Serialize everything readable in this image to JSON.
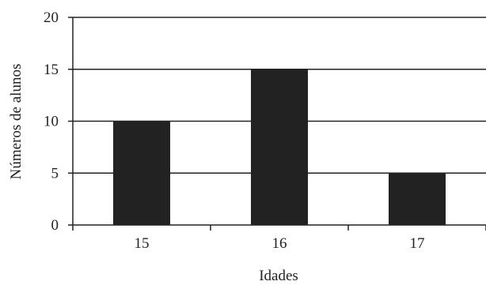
{
  "chart_data": {
    "type": "bar",
    "categories": [
      "15",
      "16",
      "17"
    ],
    "values": [
      10,
      15,
      5
    ],
    "xlabel": "Idades",
    "ylabel": "Números de alunos",
    "ylim": [
      0,
      20
    ],
    "yticks": [
      0,
      5,
      10,
      15,
      20
    ],
    "grid": true,
    "colors": {
      "bar": "#222222",
      "axis": "#222222",
      "grid": "#222222"
    }
  }
}
